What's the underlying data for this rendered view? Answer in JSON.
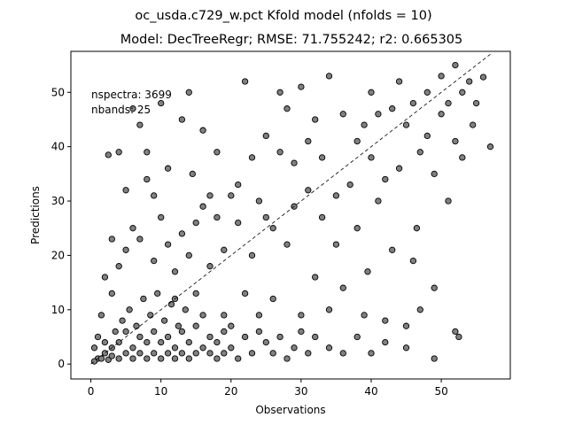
{
  "figure": {
    "suptitle": "oc_usda.c729_w.pct Kfold model (nfolds = 10)"
  },
  "chart_data": {
    "type": "scatter",
    "title": "Model: DecTreeRegr; RMSE: 71.755242; r2: 0.665305",
    "xlabel": "Observations",
    "ylabel": "Predictions",
    "xlim": [
      -2.85,
      59.85
    ],
    "ylim": [
      -2.74,
      57.54
    ],
    "xticks": [
      0,
      10,
      20,
      30,
      40,
      50
    ],
    "yticks": [
      0,
      10,
      20,
      30,
      40,
      50
    ],
    "grid": false,
    "annotations": [
      "nspectra: 3699",
      "nbands: 25"
    ],
    "reference_line": {
      "style": "dashed",
      "color": "#000000",
      "from": [
        0,
        0
      ],
      "to": [
        57,
        57
      ]
    },
    "marker": {
      "shape": "circle",
      "face_color": "#808080",
      "edge_color": "#000000"
    },
    "series": [
      {
        "points": [
          [
            57,
            40
          ],
          [
            56,
            52.8
          ],
          [
            55,
            48
          ],
          [
            54.5,
            44
          ],
          [
            54,
            52
          ],
          [
            53,
            50
          ],
          [
            53,
            38
          ],
          [
            52,
            55
          ],
          [
            52,
            41
          ],
          [
            52,
            6
          ],
          [
            52.5,
            5
          ],
          [
            51,
            48
          ],
          [
            51,
            30
          ],
          [
            50,
            53
          ],
          [
            50,
            46
          ],
          [
            49,
            35
          ],
          [
            49,
            14
          ],
          [
            48,
            50
          ],
          [
            48,
            42
          ],
          [
            47,
            39
          ],
          [
            47,
            10
          ],
          [
            46.5,
            25
          ],
          [
            46,
            48
          ],
          [
            46,
            19
          ],
          [
            45,
            44
          ],
          [
            45,
            7
          ],
          [
            44,
            52
          ],
          [
            44,
            36
          ],
          [
            43,
            47
          ],
          [
            43,
            21
          ],
          [
            42,
            34
          ],
          [
            42,
            8
          ],
          [
            41,
            30
          ],
          [
            41,
            46
          ],
          [
            40,
            50
          ],
          [
            40,
            38
          ],
          [
            39.5,
            17
          ],
          [
            39,
            44
          ],
          [
            39,
            9
          ],
          [
            38,
            25
          ],
          [
            38,
            41
          ],
          [
            37,
            33
          ],
          [
            36,
            46
          ],
          [
            36,
            14
          ],
          [
            35,
            22
          ],
          [
            35,
            31
          ],
          [
            34,
            53
          ],
          [
            34,
            10
          ],
          [
            33,
            38
          ],
          [
            33,
            27
          ],
          [
            32,
            45
          ],
          [
            32,
            16
          ],
          [
            31,
            41
          ],
          [
            31,
            32
          ],
          [
            30,
            51
          ],
          [
            30,
            9
          ],
          [
            29,
            37
          ],
          [
            29,
            29
          ],
          [
            28,
            22
          ],
          [
            28,
            47
          ],
          [
            27,
            50
          ],
          [
            27,
            39
          ],
          [
            26,
            12
          ],
          [
            26,
            25
          ],
          [
            25,
            42
          ],
          [
            25,
            27
          ],
          [
            24,
            30
          ],
          [
            24,
            6
          ],
          [
            23,
            38
          ],
          [
            23,
            20
          ],
          [
            22,
            52
          ],
          [
            22,
            13
          ],
          [
            21,
            26
          ],
          [
            21,
            33
          ],
          [
            20,
            31
          ],
          [
            20,
            7
          ],
          [
            19,
            21
          ],
          [
            19,
            9
          ],
          [
            18,
            39
          ],
          [
            18,
            27
          ],
          [
            17,
            18
          ],
          [
            17,
            31
          ],
          [
            16,
            43
          ],
          [
            16,
            29
          ],
          [
            15,
            13
          ],
          [
            15,
            26
          ],
          [
            14.5,
            35
          ],
          [
            14,
            50
          ],
          [
            14,
            20
          ],
          [
            13,
            24
          ],
          [
            13,
            45
          ],
          [
            12,
            12
          ],
          [
            12,
            17
          ],
          [
            11,
            22
          ],
          [
            11,
            36
          ],
          [
            10,
            27
          ],
          [
            10,
            48
          ],
          [
            9,
            19
          ],
          [
            9,
            31
          ],
          [
            8,
            34
          ],
          [
            8,
            39
          ],
          [
            7,
            23
          ],
          [
            7,
            44
          ],
          [
            6,
            25
          ],
          [
            6,
            47
          ],
          [
            5,
            21
          ],
          [
            5,
            32
          ],
          [
            4,
            18
          ],
          [
            4,
            39
          ],
          [
            3,
            23
          ],
          [
            3,
            13
          ],
          [
            2.5,
            38.5
          ],
          [
            2,
            16
          ],
          [
            1.5,
            9
          ],
          [
            1,
            5
          ],
          [
            1,
            1
          ],
          [
            0.5,
            3
          ],
          [
            0.5,
            0.5
          ],
          [
            1.5,
            1
          ],
          [
            2,
            2
          ],
          [
            2,
            4
          ],
          [
            2.5,
            0.8
          ],
          [
            3,
            1.5
          ],
          [
            3,
            3
          ],
          [
            3.5,
            6
          ],
          [
            4,
            1
          ],
          [
            4,
            4
          ],
          [
            4.5,
            8
          ],
          [
            5,
            2
          ],
          [
            5,
            6
          ],
          [
            5.5,
            10
          ],
          [
            6,
            1
          ],
          [
            6,
            3
          ],
          [
            6.5,
            7
          ],
          [
            7,
            2
          ],
          [
            7,
            5
          ],
          [
            7.5,
            12
          ],
          [
            8,
            1
          ],
          [
            8,
            4
          ],
          [
            8.5,
            9
          ],
          [
            9,
            2
          ],
          [
            9,
            6
          ],
          [
            9.5,
            13
          ],
          [
            10,
            1
          ],
          [
            10,
            4
          ],
          [
            10.5,
            8
          ],
          [
            11,
            2
          ],
          [
            11,
            5
          ],
          [
            11.5,
            11
          ],
          [
            12,
            1
          ],
          [
            12,
            3
          ],
          [
            12.5,
            7
          ],
          [
            13,
            2
          ],
          [
            13,
            6
          ],
          [
            13.5,
            10
          ],
          [
            14,
            1
          ],
          [
            14,
            4
          ],
          [
            15,
            2
          ],
          [
            15,
            7
          ],
          [
            16,
            3
          ],
          [
            16,
            9
          ],
          [
            17,
            2
          ],
          [
            17,
            5
          ],
          [
            18,
            1
          ],
          [
            18,
            4
          ],
          [
            19,
            2
          ],
          [
            19,
            6
          ],
          [
            20,
            3
          ],
          [
            21,
            1
          ],
          [
            22,
            5
          ],
          [
            23,
            2
          ],
          [
            24,
            9
          ],
          [
            25,
            4
          ],
          [
            26,
            2
          ],
          [
            27,
            5
          ],
          [
            28,
            1
          ],
          [
            29,
            3
          ],
          [
            30,
            6
          ],
          [
            31,
            2
          ],
          [
            32,
            5
          ],
          [
            34,
            3
          ],
          [
            36,
            2
          ],
          [
            38,
            5
          ],
          [
            40,
            2
          ],
          [
            42,
            4
          ],
          [
            45,
            3
          ],
          [
            49,
            1
          ]
        ]
      }
    ]
  }
}
